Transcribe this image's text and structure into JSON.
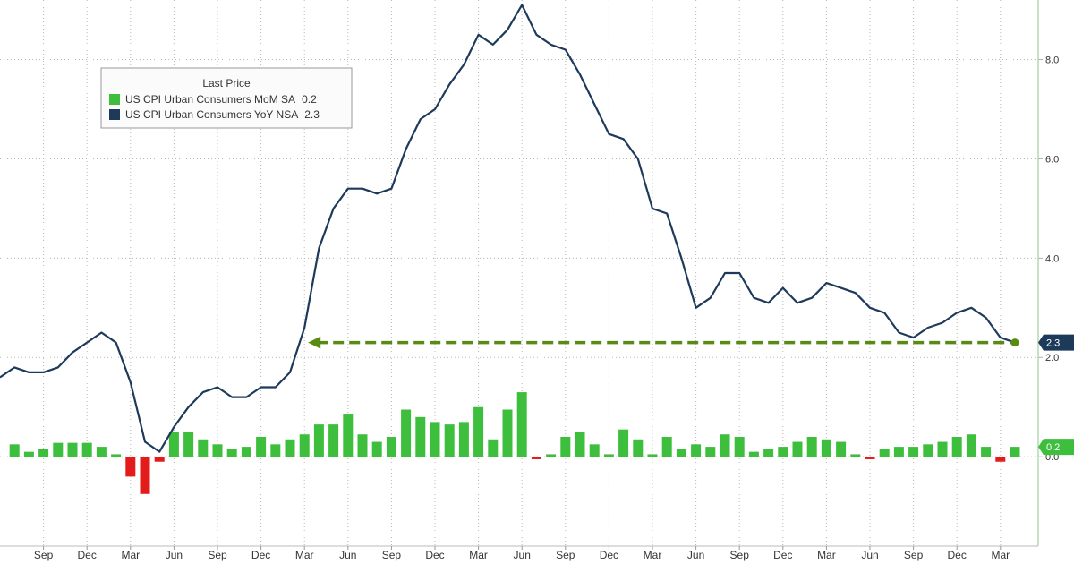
{
  "chart_data": {
    "type": "bar-line",
    "legend_title": "Last Price",
    "categories": [
      null,
      null,
      null,
      "Sep",
      null,
      null,
      "Dec",
      null,
      null,
      "Mar",
      null,
      null,
      "Jun",
      null,
      null,
      "Sep",
      null,
      null,
      "Dec",
      null,
      null,
      "Mar",
      null,
      null,
      "Jun",
      null,
      null,
      "Sep",
      null,
      null,
      "Dec",
      null,
      null,
      "Mar",
      null,
      null,
      "Jun",
      null,
      null,
      "Sep",
      null,
      null,
      "Dec",
      null,
      null,
      "Mar",
      null,
      null,
      "Jun",
      null,
      null,
      "Sep",
      null,
      null,
      "Dec",
      null,
      null,
      "Mar",
      null,
      null,
      "Jun",
      null,
      null,
      "Sep",
      null,
      null,
      "Dec",
      null,
      null,
      "Mar",
      null
    ],
    "series": [
      {
        "name": "US CPI Urban Consumers MoM SA",
        "type": "bar",
        "color": "#3dbf3d",
        "negative_color": "#e31b1b",
        "values": [
          0,
          0.25,
          0.1,
          0.15,
          0.28,
          0.28,
          0.28,
          0.2,
          0.05,
          -0.4,
          -0.75,
          -0.1,
          0.5,
          0.5,
          0.35,
          0.25,
          0.15,
          0.2,
          0.4,
          0.25,
          0.35,
          0.45,
          0.65,
          0.65,
          0.85,
          0.45,
          0.3,
          0.4,
          0.95,
          0.8,
          0.7,
          0.65,
          0.7,
          1.0,
          0.35,
          0.95,
          1.3,
          -0.05,
          0.05,
          0.4,
          0.5,
          0.25,
          0.05,
          0.55,
          0.35,
          0.05,
          0.4,
          0.15,
          0.25,
          0.2,
          0.45,
          0.4,
          0.1,
          0.15,
          0.2,
          0.3,
          0.4,
          0.35,
          0.3,
          0.05,
          -0.05,
          0.15,
          0.2,
          0.2,
          0.25,
          0.3,
          0.4,
          0.45,
          0.2,
          -0.1,
          0.2
        ]
      },
      {
        "name": "US CPI Urban Consumers YoY NSA",
        "type": "line",
        "color": "#1e3a5a",
        "values": [
          1.6,
          1.8,
          1.7,
          1.7,
          1.8,
          2.1,
          2.3,
          2.5,
          2.3,
          1.5,
          0.3,
          0.1,
          0.6,
          1.0,
          1.3,
          1.4,
          1.2,
          1.2,
          1.4,
          1.4,
          1.7,
          2.6,
          4.2,
          5.0,
          5.4,
          5.4,
          5.3,
          5.4,
          6.2,
          6.8,
          7.0,
          7.5,
          7.9,
          8.5,
          8.3,
          8.6,
          9.1,
          8.5,
          8.3,
          8.2,
          7.7,
          7.1,
          6.5,
          6.4,
          6.0,
          5.0,
          4.9,
          4.0,
          3.0,
          3.2,
          3.7,
          3.7,
          3.2,
          3.1,
          3.4,
          3.1,
          3.2,
          3.5,
          3.4,
          3.3,
          3.0,
          2.9,
          2.5,
          2.4,
          2.6,
          2.7,
          2.9,
          3.0,
          2.8,
          2.4,
          2.3
        ]
      }
    ],
    "annotation_color": "#5a8a12",
    "ylim": [
      -1.8,
      9.2
    ],
    "yticks": [
      {
        "value": 0,
        "label": "0.0"
      },
      {
        "value": 2,
        "label": "2.0"
      },
      {
        "value": 4,
        "label": "4.0"
      },
      {
        "value": 6,
        "label": "6.0"
      },
      {
        "value": 8,
        "label": "8.0"
      }
    ],
    "grid": true
  }
}
